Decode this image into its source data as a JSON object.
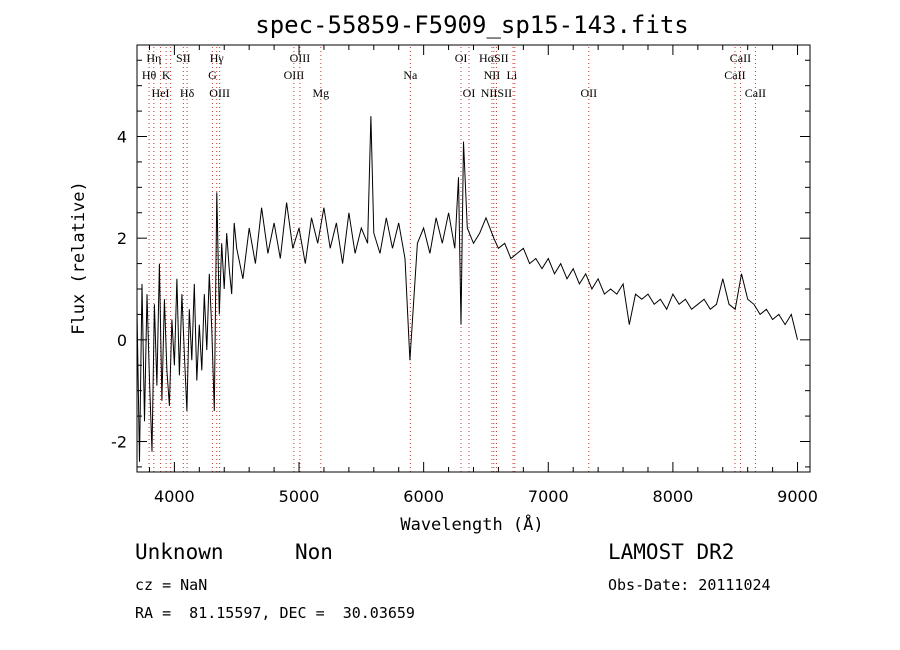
{
  "chart_data": {
    "type": "line",
    "title": "spec-55859-F5909_sp15-143.fits",
    "xlabel": "Wavelength (Å)",
    "ylabel": "Flux (relative)",
    "xlim": [
      3700,
      9100
    ],
    "ylim": [
      -2.6,
      5.8
    ],
    "x_ticks": [
      4000,
      5000,
      6000,
      7000,
      8000,
      9000
    ],
    "y_ticks": [
      -2,
      0,
      2,
      4
    ],
    "grid": false,
    "series": [
      {
        "x": [
          3700,
          3720,
          3740,
          3760,
          3780,
          3800,
          3820,
          3840,
          3860,
          3880,
          3900,
          3920,
          3940,
          3960,
          3980,
          4000,
          4020,
          4040,
          4060,
          4080,
          4100,
          4120,
          4140,
          4160,
          4180,
          4200,
          4220,
          4240,
          4260,
          4280,
          4300,
          4320,
          4340,
          4360,
          4380,
          4400,
          4420,
          4440,
          4460,
          4480,
          4500,
          4550,
          4600,
          4650,
          4700,
          4750,
          4800,
          4850,
          4900,
          4950,
          5000,
          5050,
          5100,
          5150,
          5200,
          5250,
          5300,
          5350,
          5400,
          5450,
          5500,
          5550,
          5577,
          5600,
          5650,
          5700,
          5750,
          5800,
          5850,
          5890,
          5950,
          6000,
          6050,
          6100,
          6150,
          6200,
          6250,
          6280,
          6300,
          6320,
          6350,
          6400,
          6450,
          6500,
          6563,
          6600,
          6650,
          6700,
          6750,
          6800,
          6850,
          6900,
          6950,
          7000,
          7050,
          7100,
          7150,
          7200,
          7250,
          7300,
          7350,
          7400,
          7450,
          7500,
          7550,
          7600,
          7650,
          7700,
          7750,
          7800,
          7850,
          7900,
          7950,
          8000,
          8050,
          8100,
          8150,
          8200,
          8250,
          8300,
          8350,
          8400,
          8450,
          8500,
          8550,
          8600,
          8650,
          8700,
          8750,
          8800,
          8850,
          8900,
          8950,
          9000
        ],
        "y": [
          0.6,
          -2.4,
          1.1,
          -1.6,
          0.9,
          -0.8,
          -2.2,
          0.7,
          -0.9,
          1.5,
          -1.2,
          0.8,
          -0.6,
          -1.3,
          0.4,
          -0.5,
          1.2,
          -0.7,
          0.9,
          -0.3,
          -1.4,
          0.6,
          -0.4,
          1.1,
          -0.8,
          0.3,
          -0.6,
          0.9,
          -0.2,
          1.3,
          0.2,
          -1.4,
          2.9,
          0.5,
          1.9,
          1.0,
          2.1,
          1.4,
          0.9,
          2.3,
          1.8,
          1.2,
          2.2,
          1.5,
          2.6,
          1.7,
          2.3,
          1.6,
          2.7,
          1.8,
          2.2,
          1.5,
          2.4,
          1.9,
          2.6,
          1.8,
          2.3,
          1.5,
          2.5,
          1.7,
          2.2,
          1.9,
          4.4,
          2.1,
          1.7,
          2.4,
          1.8,
          2.3,
          1.6,
          -0.4,
          1.9,
          2.2,
          1.7,
          2.4,
          1.9,
          2.5,
          1.8,
          3.2,
          0.3,
          3.9,
          2.2,
          1.9,
          2.1,
          2.4,
          2.0,
          1.8,
          1.9,
          1.6,
          1.7,
          1.8,
          1.5,
          1.6,
          1.4,
          1.6,
          1.3,
          1.5,
          1.2,
          1.4,
          1.1,
          1.3,
          1.0,
          1.2,
          0.9,
          1.0,
          0.9,
          1.1,
          0.3,
          0.9,
          0.8,
          0.9,
          0.7,
          0.8,
          0.6,
          0.9,
          0.7,
          0.8,
          0.6,
          0.7,
          0.8,
          0.6,
          0.7,
          1.2,
          0.7,
          0.6,
          1.3,
          0.8,
          0.7,
          0.5,
          0.6,
          0.4,
          0.5,
          0.3,
          0.5,
          0.0
        ]
      }
    ],
    "line_markers": [
      {
        "label": "Hη",
        "wavelength": 3835,
        "row": 0
      },
      {
        "label": "SII",
        "wavelength": 4072,
        "row": 0
      },
      {
        "label": "Hγ",
        "wavelength": 4340,
        "row": 0
      },
      {
        "label": "OIII",
        "wavelength": 5007,
        "row": 0
      },
      {
        "label": "OI",
        "wavelength": 6300,
        "row": 0
      },
      {
        "label": "HαSII",
        "wavelength": 6563,
        "row": 0
      },
      {
        "label": "CaII",
        "wavelength": 8542,
        "row": 0
      },
      {
        "label": "Hθ",
        "wavelength": 3797,
        "row": 1
      },
      {
        "label": "K",
        "wavelength": 3934,
        "row": 1
      },
      {
        "label": "G",
        "wavelength": 4305,
        "row": 1
      },
      {
        "label": "OIII",
        "wavelength": 4959,
        "row": 1
      },
      {
        "label": "Na",
        "wavelength": 5893,
        "row": 1
      },
      {
        "label": "NII",
        "wavelength": 6548,
        "row": 1
      },
      {
        "label": "Li",
        "wavelength": 6708,
        "row": 1
      },
      {
        "label": "CaII",
        "wavelength": 8498,
        "row": 1
      },
      {
        "label": "HeI",
        "wavelength": 3889,
        "row": 2
      },
      {
        "label": "Hδ",
        "wavelength": 4102,
        "row": 2
      },
      {
        "label": "OIII",
        "wavelength": 4363,
        "row": 2
      },
      {
        "label": "Mg",
        "wavelength": 5175,
        "row": 2
      },
      {
        "label": "OI",
        "wavelength": 6364,
        "row": 2
      },
      {
        "label": "NIISII",
        "wavelength": 6584,
        "row": 2
      },
      {
        "label": "OII",
        "wavelength": 7325,
        "row": 2
      },
      {
        "label": "CaII",
        "wavelength": 8662,
        "row": 2
      }
    ],
    "marker_lines": [
      3797,
      3835,
      3889,
      3934,
      3970,
      4072,
      4102,
      4305,
      4340,
      4363,
      4959,
      5007,
      5175,
      5893,
      6300,
      6364,
      6548,
      6563,
      6584,
      6717,
      6731,
      7325,
      8498,
      8542,
      8662
    ]
  },
  "info": {
    "class": "Unknown",
    "subclass": "Non",
    "cz": "cz = NaN",
    "coords": "RA =  81.15597, DEC =  30.03659",
    "survey": "LAMOST DR2",
    "obs_date": "Obs-Date: 20111024"
  }
}
